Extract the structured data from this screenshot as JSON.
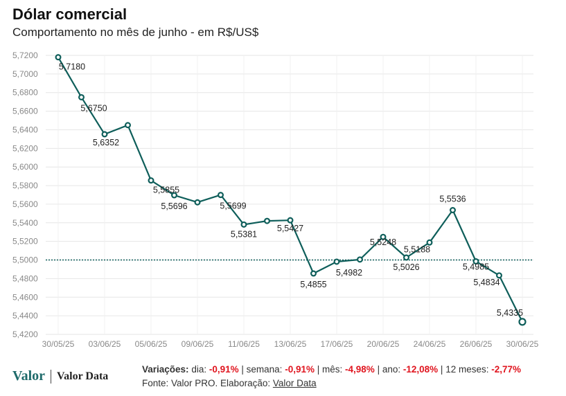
{
  "header": {
    "title": "Dólar comercial",
    "subtitle": "Comportamento no mês de junho - em R$/US$"
  },
  "chart_data": {
    "type": "line",
    "x_ticks": [
      "30/05/25",
      "03/06/25",
      "05/06/25",
      "09/06/25",
      "11/06/25",
      "13/06/25",
      "17/06/25",
      "20/06/25",
      "24/06/25",
      "26/06/25",
      "30/06/25"
    ],
    "y_ticks": [
      "5,7200",
      "5,7000",
      "5,6800",
      "5,6600",
      "5,6400",
      "5,6200",
      "5,6000",
      "5,5800",
      "5,5600",
      "5,5400",
      "5,5200",
      "5,5000",
      "5,4800",
      "5,4600",
      "5,4400",
      "5,4200"
    ],
    "ylim": [
      5.42,
      5.72
    ],
    "reference_line": 5.5,
    "series": [
      {
        "color": "#0e5e5a",
        "points": [
          {
            "date": "30/05/25",
            "value": 5.718,
            "label": "5,7180"
          },
          {
            "date": "02/06/25",
            "value": 5.675,
            "label": "5,6750"
          },
          {
            "date": "03/06/25",
            "value": 5.6352,
            "label": "5,6352"
          },
          {
            "date": "04/06/25",
            "value": 5.645,
            "label": ""
          },
          {
            "date": "05/06/25",
            "value": 5.5855,
            "label": "5,5855"
          },
          {
            "date": "06/06/25",
            "value": 5.5696,
            "label": "5,5696"
          },
          {
            "date": "09/06/25",
            "value": 5.562,
            "label": ""
          },
          {
            "date": "10/06/25",
            "value": 5.5699,
            "label": "5,5699"
          },
          {
            "date": "11/06/25",
            "value": 5.5381,
            "label": "5,5381"
          },
          {
            "date": "12/06/25",
            "value": 5.542,
            "label": ""
          },
          {
            "date": "13/06/25",
            "value": 5.5427,
            "label": "5,5427"
          },
          {
            "date": "16/06/25",
            "value": 5.4855,
            "label": "5,4855"
          },
          {
            "date": "17/06/25",
            "value": 5.4982,
            "label": "5,4982"
          },
          {
            "date": "18/06/25",
            "value": 5.5005,
            "label": ""
          },
          {
            "date": "20/06/25",
            "value": 5.5248,
            "label": "5,5248"
          },
          {
            "date": "23/06/25",
            "value": 5.5026,
            "label": "5,5026"
          },
          {
            "date": "24/06/25",
            "value": 5.5188,
            "label": "5,5188"
          },
          {
            "date": "25/06/25",
            "value": 5.5536,
            "label": "5,5536"
          },
          {
            "date": "26/06/25",
            "value": 5.4985,
            "label": "5,4985"
          },
          {
            "date": "27/06/25",
            "value": 5.4834,
            "label": "5,4834"
          },
          {
            "date": "30/06/25",
            "value": 5.4335,
            "label": "5,4335"
          }
        ]
      }
    ],
    "grid": true
  },
  "footer": {
    "logo_main": "Valor",
    "logo_data": "Valor Data",
    "variations_label": "Variações:",
    "day_label": "dia:",
    "day_value": "-0,91%",
    "week_label": "semana:",
    "week_value": "-0,91%",
    "month_label": "mês:",
    "month_value": "-4,98%",
    "year_label": "ano:",
    "year_value": "-12,08%",
    "twelve_label": "12 meses:",
    "twelve_value": "-2,77%",
    "source_prefix": "Fonte: Valor PRO. Elaboração:",
    "source_link": "Valor Data"
  }
}
